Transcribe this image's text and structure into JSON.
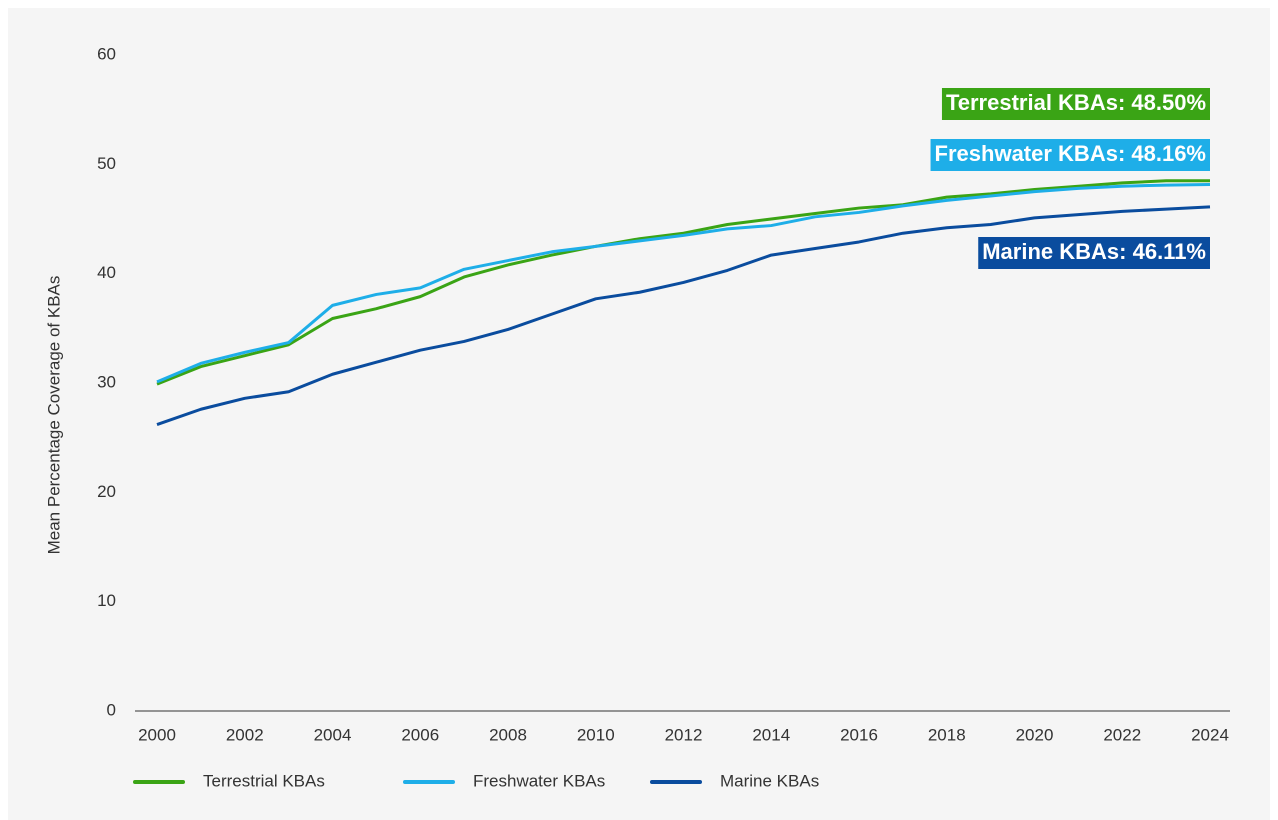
{
  "chart_data": {
    "type": "line",
    "ylabel": "Mean Percentage Coverage of KBAs",
    "x": [
      2000,
      2001,
      2002,
      2003,
      2004,
      2005,
      2006,
      2007,
      2008,
      2009,
      2010,
      2011,
      2012,
      2013,
      2014,
      2015,
      2016,
      2017,
      2018,
      2019,
      2020,
      2021,
      2022,
      2023,
      2024
    ],
    "xlim": [
      2000,
      2024
    ],
    "xticks": [
      2000,
      2002,
      2004,
      2006,
      2008,
      2010,
      2012,
      2014,
      2016,
      2018,
      2020,
      2022,
      2024
    ],
    "ylim": [
      0,
      60
    ],
    "yticks": [
      0,
      10,
      20,
      30,
      40,
      50,
      60
    ],
    "grid": false,
    "legend": "bottom",
    "series": [
      {
        "name": "Terrestrial KBAs",
        "color": "#3aa415",
        "label": "Terrestrial KBAs: 48.50%",
        "values": [
          29.9,
          31.5,
          32.5,
          33.5,
          35.9,
          36.8,
          37.9,
          39.7,
          40.8,
          41.7,
          42.5,
          43.2,
          43.7,
          44.5,
          45.0,
          45.5,
          46.0,
          46.3,
          47.0,
          47.3,
          47.7,
          48.0,
          48.3,
          48.5,
          48.5
        ]
      },
      {
        "name": "Freshwater KBAs",
        "color": "#1eaee8",
        "label": "Freshwater KBAs: 48.16%",
        "values": [
          30.1,
          31.8,
          32.8,
          33.7,
          37.1,
          38.1,
          38.7,
          40.4,
          41.2,
          42.0,
          42.5,
          43.0,
          43.5,
          44.1,
          44.4,
          45.2,
          45.6,
          46.2,
          46.7,
          47.1,
          47.5,
          47.8,
          48.0,
          48.1,
          48.16
        ]
      },
      {
        "name": "Marine KBAs",
        "color": "#0a4c9e",
        "label": "Marine KBAs: 46.11%",
        "values": [
          26.2,
          27.6,
          28.6,
          29.2,
          30.8,
          31.9,
          33.0,
          33.8,
          34.9,
          36.3,
          37.7,
          38.3,
          39.2,
          40.3,
          41.7,
          42.3,
          42.9,
          43.7,
          44.2,
          44.5,
          45.1,
          45.4,
          45.7,
          45.9,
          46.11
        ]
      }
    ]
  }
}
